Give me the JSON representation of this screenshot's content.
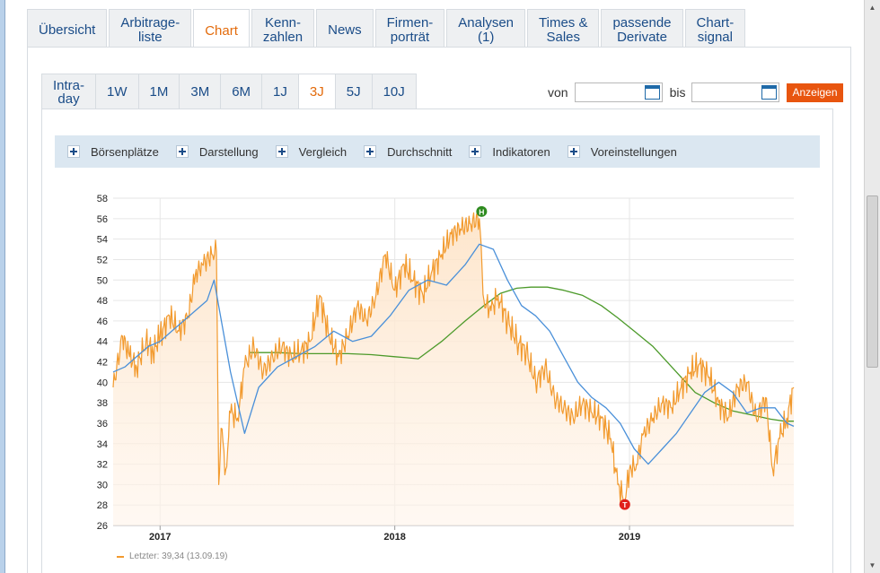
{
  "main_tabs": [
    {
      "label": "Übersicht",
      "active": false
    },
    {
      "label": "Arbitrage-\nliste",
      "active": false
    },
    {
      "label": "Chart",
      "active": true
    },
    {
      "label": "Kenn-\nzahlen",
      "active": false
    },
    {
      "label": "News",
      "active": false
    },
    {
      "label": "Firmen-\nporträt",
      "active": false
    },
    {
      "label": "Analysen\n(1)",
      "active": false
    },
    {
      "label": "Times &\nSales",
      "active": false
    },
    {
      "label": "passende\nDerivate",
      "active": false
    },
    {
      "label": "Chart-\nsignal",
      "active": false
    }
  ],
  "period_tabs": [
    {
      "label": "Intra-\nday",
      "active": false
    },
    {
      "label": "1W",
      "active": false
    },
    {
      "label": "1M",
      "active": false
    },
    {
      "label": "3M",
      "active": false
    },
    {
      "label": "6M",
      "active": false
    },
    {
      "label": "1J",
      "active": false
    },
    {
      "label": "3J",
      "active": true
    },
    {
      "label": "5J",
      "active": false
    },
    {
      "label": "10J",
      "active": false
    }
  ],
  "range": {
    "from_label": "von",
    "to_label": "bis",
    "from_value": "",
    "to_value": "",
    "button_label": "Anzeigen"
  },
  "options": [
    "Börsenplätze",
    "Darstellung",
    "Vergleich",
    "Durchschnitt",
    "Indikatoren",
    "Voreinstellungen"
  ],
  "legend": {
    "text": "Letzter: 39,34 (13.09.19)"
  },
  "colors": {
    "accent": "#e36b0c",
    "price_line": "#f29a2e",
    "ma_short": "#4a90d9",
    "ma_long": "#4c9a2a",
    "high_marker": "#2e8b1f",
    "low_marker": "#e0201b"
  },
  "chart_data": {
    "type": "line",
    "title": "",
    "xlabel": "",
    "ylabel": "",
    "ylim": [
      26,
      58
    ],
    "yticks": [
      26,
      28,
      30,
      32,
      34,
      36,
      38,
      40,
      42,
      44,
      46,
      48,
      50,
      52,
      54,
      56,
      58
    ],
    "xlim": [
      2016.8,
      2019.7
    ],
    "xticks": [
      {
        "x": 2017,
        "label": "2017"
      },
      {
        "x": 2018,
        "label": "2018"
      },
      {
        "x": 2019,
        "label": "2019"
      }
    ],
    "grid": true,
    "markers": [
      {
        "label": "H",
        "x": 2018.37,
        "y": 56.0
      },
      {
        "label": "T",
        "x": 2018.98,
        "y": 28.4
      }
    ],
    "series": [
      {
        "key": "price",
        "x": [
          2016.8,
          2016.84,
          2016.87,
          2016.9,
          2016.94,
          2016.97,
          2017.0,
          2017.04,
          2017.08,
          2017.12,
          2017.15,
          2017.18,
          2017.22,
          2017.24,
          2017.25,
          2017.26,
          2017.28,
          2017.3,
          2017.33,
          2017.36,
          2017.4,
          2017.44,
          2017.48,
          2017.52,
          2017.56,
          2017.6,
          2017.64,
          2017.68,
          2017.72,
          2017.76,
          2017.8,
          2017.84,
          2017.88,
          2017.92,
          2017.96,
          2018.0,
          2018.04,
          2018.08,
          2018.12,
          2018.16,
          2018.2,
          2018.24,
          2018.28,
          2018.32,
          2018.36,
          2018.38,
          2018.41,
          2018.44,
          2018.48,
          2018.52,
          2018.56,
          2018.6,
          2018.64,
          2018.68,
          2018.72,
          2018.76,
          2018.8,
          2018.84,
          2018.88,
          2018.92,
          2018.95,
          2018.98,
          2019.0,
          2019.03,
          2019.06,
          2019.1,
          2019.14,
          2019.18,
          2019.22,
          2019.26,
          2019.3,
          2019.34,
          2019.38,
          2019.42,
          2019.46,
          2019.5,
          2019.54,
          2019.58,
          2019.61,
          2019.64,
          2019.67,
          2019.7
        ],
        "y": [
          39.5,
          44.5,
          42.5,
          41.5,
          44.0,
          43.0,
          44.5,
          46.5,
          45.0,
          46.5,
          50.5,
          51.5,
          52.5,
          52.8,
          30.0,
          35.5,
          31.5,
          37.0,
          36.5,
          41.5,
          43.5,
          41.0,
          42.5,
          43.5,
          42.5,
          43.0,
          44.0,
          48.5,
          44.5,
          42.5,
          44.5,
          47.5,
          46.0,
          48.5,
          52.5,
          49.0,
          51.5,
          50.0,
          48.5,
          51.0,
          52.5,
          54.5,
          55.0,
          55.5,
          56.0,
          48.0,
          47.0,
          48.5,
          46.0,
          44.0,
          43.0,
          40.0,
          41.5,
          38.5,
          37.5,
          36.5,
          38.0,
          37.0,
          36.5,
          34.5,
          30.0,
          28.4,
          31.5,
          32.0,
          35.0,
          36.5,
          38.0,
          37.5,
          39.5,
          41.0,
          41.8,
          40.5,
          38.0,
          36.5,
          39.5,
          40.0,
          36.5,
          38.5,
          31.5,
          34.5,
          36.5,
          39.5
        ]
      },
      {
        "key": "ma_short",
        "x": [
          2016.8,
          2016.85,
          2016.9,
          2016.95,
          2017.0,
          2017.05,
          2017.1,
          2017.15,
          2017.2,
          2017.23,
          2017.3,
          2017.36,
          2017.42,
          2017.5,
          2017.58,
          2017.66,
          2017.74,
          2017.82,
          2017.9,
          2017.98,
          2018.06,
          2018.14,
          2018.22,
          2018.3,
          2018.36,
          2018.42,
          2018.48,
          2018.54,
          2018.6,
          2018.66,
          2018.72,
          2018.78,
          2018.84,
          2018.9,
          2018.96,
          2019.02,
          2019.08,
          2019.14,
          2019.2,
          2019.26,
          2019.32,
          2019.38,
          2019.44,
          2019.5,
          2019.56,
          2019.62,
          2019.67,
          2019.7
        ],
        "y": [
          41.0,
          41.5,
          42.5,
          43.5,
          44.0,
          45.0,
          46.0,
          47.0,
          48.0,
          50.0,
          41.0,
          35.0,
          39.5,
          41.5,
          42.5,
          43.5,
          45.0,
          44.0,
          44.5,
          46.5,
          49.0,
          50.0,
          49.5,
          51.5,
          53.5,
          53.0,
          50.0,
          47.5,
          46.5,
          45.0,
          42.5,
          40.0,
          38.5,
          37.5,
          36.0,
          33.5,
          32.0,
          33.5,
          35.0,
          37.0,
          39.0,
          40.0,
          39.0,
          37.0,
          37.5,
          37.5,
          36.0,
          35.7
        ]
      },
      {
        "key": "ma_long",
        "x": [
          2017.38,
          2017.5,
          2017.6,
          2017.7,
          2017.8,
          2017.9,
          2018.0,
          2018.05,
          2018.1,
          2018.2,
          2018.3,
          2018.38,
          2018.45,
          2018.52,
          2018.58,
          2018.65,
          2018.72,
          2018.8,
          2018.88,
          2018.95,
          2019.02,
          2019.1,
          2019.2,
          2019.28,
          2019.36,
          2019.44,
          2019.52,
          2019.6,
          2019.66,
          2019.7
        ],
        "y": [
          42.9,
          42.9,
          42.8,
          42.8,
          42.8,
          42.7,
          42.5,
          42.4,
          42.3,
          44.0,
          46.0,
          47.5,
          48.7,
          49.2,
          49.3,
          49.3,
          49.0,
          48.5,
          47.5,
          46.3,
          45.0,
          43.5,
          41.0,
          39.0,
          38.0,
          37.2,
          36.8,
          36.4,
          36.2,
          36.2
        ]
      }
    ]
  }
}
